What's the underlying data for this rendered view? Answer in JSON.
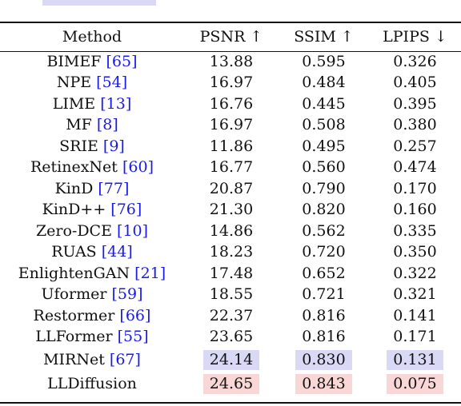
{
  "table": {
    "headers": [
      "Method",
      "PSNR ↑",
      "SSIM ↑",
      "LPIPS ↓"
    ],
    "rows": [
      {
        "method": "BIMEF",
        "cite": "65",
        "psnr": "13.88",
        "ssim": "0.595",
        "lpips": "0.326"
      },
      {
        "method": "NPE",
        "cite": "54",
        "psnr": "16.97",
        "ssim": "0.484",
        "lpips": "0.405"
      },
      {
        "method": "LIME",
        "cite": "13",
        "psnr": "16.76",
        "ssim": "0.445",
        "lpips": "0.395"
      },
      {
        "method": "MF",
        "cite": "8",
        "psnr": "16.97",
        "ssim": "0.508",
        "lpips": "0.380"
      },
      {
        "method": "SRIE",
        "cite": "9",
        "psnr": "11.86",
        "ssim": "0.495",
        "lpips": "0.257"
      },
      {
        "method": "RetinexNet",
        "cite": "60",
        "psnr": "16.77",
        "ssim": "0.560",
        "lpips": "0.474"
      },
      {
        "method": "KinD",
        "cite": "77",
        "psnr": "20.87",
        "ssim": "0.790",
        "lpips": "0.170"
      },
      {
        "method": "KinD++",
        "cite": "76",
        "psnr": "21.30",
        "ssim": "0.820",
        "lpips": "0.160"
      },
      {
        "method": "Zero-DCE",
        "cite": "10",
        "psnr": "14.86",
        "ssim": "0.562",
        "lpips": "0.335"
      },
      {
        "method": "RUAS",
        "cite": "44",
        "psnr": "18.23",
        "ssim": "0.720",
        "lpips": "0.350"
      },
      {
        "method": "EnlightenGAN",
        "cite": "21",
        "psnr": "17.48",
        "ssim": "0.652",
        "lpips": "0.322"
      },
      {
        "method": "Uformer",
        "cite": "59",
        "psnr": "18.55",
        "ssim": "0.721",
        "lpips": "0.321"
      },
      {
        "method": "Restormer",
        "cite": "66",
        "psnr": "22.37",
        "ssim": "0.816",
        "lpips": "0.141"
      },
      {
        "method": "LLFormer",
        "cite": "55",
        "psnr": "23.65",
        "ssim": "0.816",
        "lpips": "0.171"
      },
      {
        "method": "MIRNet",
        "cite": "67",
        "psnr": "24.14",
        "ssim": "0.830",
        "lpips": "0.131",
        "highlight": "second"
      },
      {
        "method": "LLDiffusion",
        "cite": "",
        "psnr": "24.65",
        "ssim": "0.843",
        "lpips": "0.075",
        "highlight": "best"
      }
    ]
  },
  "colors": {
    "best_highlight": "#f9d7d7",
    "second_highlight": "#d9d9f6",
    "citation": "#1a1ae6"
  }
}
